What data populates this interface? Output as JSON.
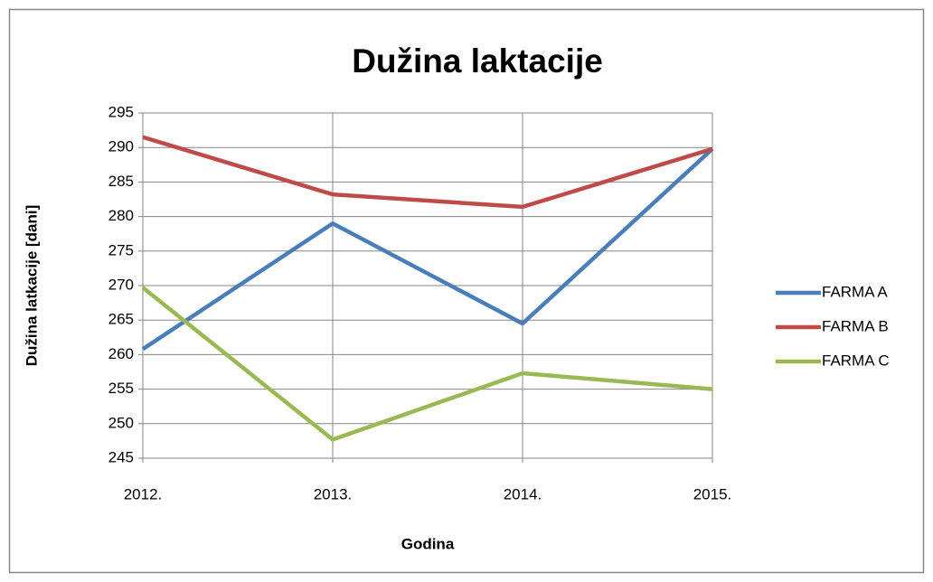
{
  "chart_data": {
    "type": "line",
    "title": "Dužina laktacije",
    "x_label": "Godina",
    "y_label": "Dužina latkacije [dani]",
    "categories": [
      "2012.",
      "2013.",
      "2014.",
      "2015."
    ],
    "series": [
      {
        "name": "FARMA A",
        "color": "#4a7ebb",
        "values": [
          260.8,
          279,
          264.5,
          289.8
        ]
      },
      {
        "name": "FARMA B",
        "color": "#be4b48",
        "values": [
          291.5,
          283.2,
          281.4,
          289.8
        ]
      },
      {
        "name": "FARMA C",
        "color": "#98b954",
        "values": [
          269.7,
          247.7,
          257.3,
          255
        ]
      }
    ],
    "ylim": [
      245,
      295
    ],
    "yticks": [
      245,
      250,
      255,
      260,
      265,
      270,
      275,
      280,
      285,
      290,
      295
    ],
    "grid": true,
    "legend": "right"
  }
}
